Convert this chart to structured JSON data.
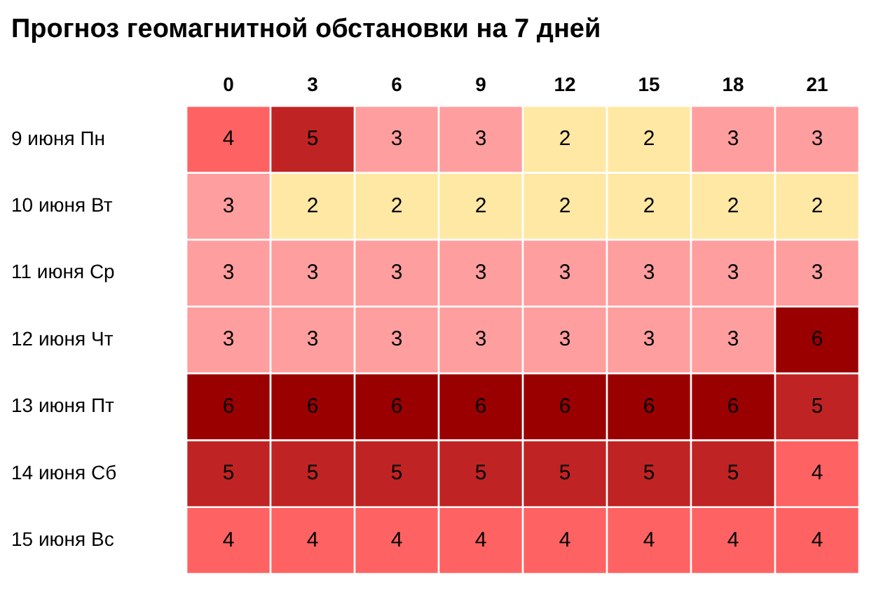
{
  "chart_data": {
    "type": "heatmap",
    "title": "Прогноз геомагнитной обстановки на 7 дней",
    "categories": [
      "0",
      "3",
      "6",
      "9",
      "12",
      "15",
      "18",
      "21"
    ],
    "y_categories": [
      "9 июня Пн",
      "10 июня Вт",
      "11 июня Ср",
      "12 июня Чт",
      "13 июня Пт",
      "14 июня Сб",
      "15 июня Вс"
    ],
    "cells": [
      [
        4,
        5,
        3,
        3,
        2,
        2,
        3,
        3
      ],
      [
        3,
        2,
        2,
        2,
        2,
        2,
        2,
        2
      ],
      [
        3,
        3,
        3,
        3,
        3,
        3,
        3,
        3
      ],
      [
        3,
        3,
        3,
        3,
        3,
        3,
        3,
        6
      ],
      [
        6,
        6,
        6,
        6,
        6,
        6,
        6,
        5
      ],
      [
        5,
        5,
        5,
        5,
        5,
        5,
        5,
        4
      ],
      [
        4,
        4,
        4,
        4,
        4,
        4,
        4,
        4
      ]
    ],
    "data_labels": true,
    "grid": false,
    "legend": false
  }
}
